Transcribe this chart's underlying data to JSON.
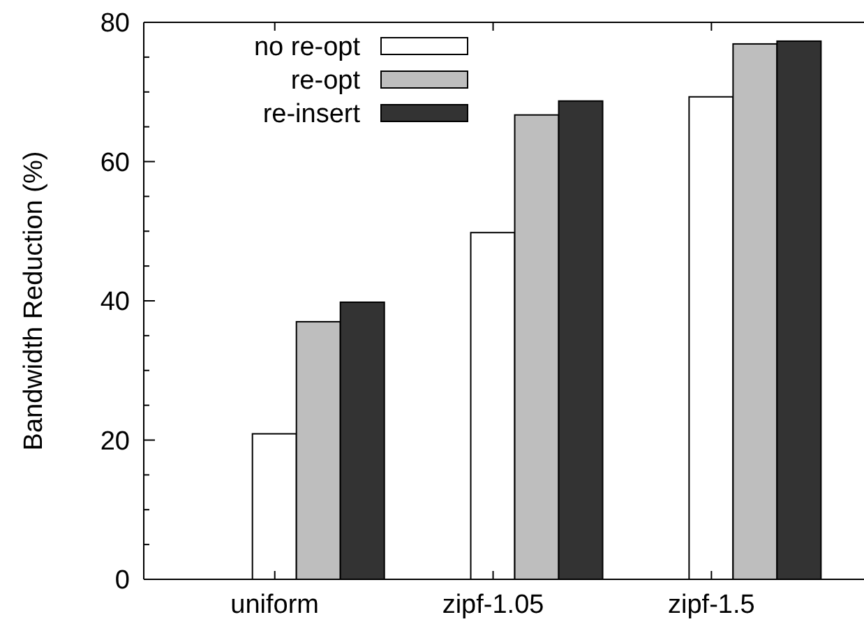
{
  "chart_data": {
    "type": "bar",
    "ylabel": "Bandwidth Reduction (%)",
    "categories": [
      "uniform",
      "zipf-1.05",
      "zipf-1.5"
    ],
    "series": [
      {
        "name": "no re-opt",
        "color": "#ffffff",
        "values": [
          20.9,
          49.8,
          69.3
        ]
      },
      {
        "name": "re-opt",
        "color": "#bebebe",
        "values": [
          37,
          66.7,
          76.9
        ]
      },
      {
        "name": "re-insert",
        "color": "#333333",
        "values": [
          39.8,
          68.7,
          77.3
        ]
      }
    ],
    "ylim": [
      0,
      80
    ],
    "yticks": [
      0,
      20,
      40,
      60,
      80
    ],
    "grid": false,
    "legend": "top left"
  }
}
